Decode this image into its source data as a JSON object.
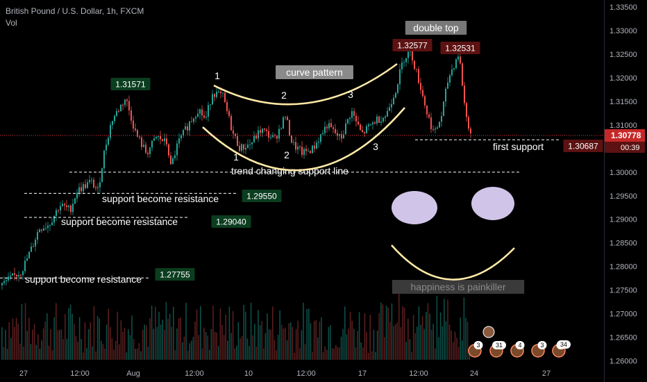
{
  "header": {
    "symbol_line": "British Pound / U.S. Dollar, 1h, FXCM",
    "volume_label": "Vol"
  },
  "colors": {
    "background": "#000000",
    "up": "#26a69a",
    "down": "#ef5350",
    "annotation_line": "#ffeaa7",
    "price_line": "#f23645",
    "smiley": "#d1c4e9"
  },
  "chart_data": {
    "type": "candlestick",
    "title": "British Pound / U.S. Dollar, 1h, FXCM",
    "ylim": [
      1.2555,
      1.3365
    ],
    "y_ticks": [
      "1.33500",
      "1.33000",
      "1.32500",
      "1.32000",
      "1.31500",
      "1.31000",
      "1.30500",
      "1.30000",
      "1.29500",
      "1.29000",
      "1.28500",
      "1.28000",
      "1.27500",
      "1.27000",
      "1.26500",
      "1.26000"
    ],
    "x_ticks": [
      "27",
      "12:00",
      "Aug",
      "12:00",
      "10",
      "12:00",
      "17",
      "12:00",
      "24",
      "27"
    ],
    "price_path": [
      [
        0,
        1.276
      ],
      [
        30,
        1.279
      ],
      [
        45,
        1.284
      ],
      [
        55,
        1.288
      ],
      [
        70,
        1.289
      ],
      [
        85,
        1.293
      ],
      [
        100,
        1.292
      ],
      [
        110,
        1.296
      ],
      [
        130,
        1.298
      ],
      [
        140,
        1.296
      ],
      [
        150,
        1.305
      ],
      [
        160,
        1.311
      ],
      [
        180,
        1.3157
      ],
      [
        195,
        1.308
      ],
      [
        210,
        1.304
      ],
      [
        225,
        1.3075
      ],
      [
        240,
        1.306
      ],
      [
        245,
        1.301
      ],
      [
        255,
        1.306
      ],
      [
        270,
        1.31
      ],
      [
        285,
        1.3135
      ],
      [
        295,
        1.311
      ],
      [
        305,
        1.317
      ],
      [
        320,
        1.316
      ],
      [
        335,
        1.308
      ],
      [
        345,
        1.305
      ],
      [
        360,
        1.306
      ],
      [
        375,
        1.309
      ],
      [
        395,
        1.307
      ],
      [
        410,
        1.312
      ],
      [
        420,
        1.306
      ],
      [
        435,
        1.304
      ],
      [
        450,
        1.305
      ],
      [
        470,
        1.31
      ],
      [
        490,
        1.307
      ],
      [
        505,
        1.313
      ],
      [
        520,
        1.308
      ],
      [
        540,
        1.311
      ],
      [
        555,
        1.312
      ],
      [
        570,
        1.318
      ],
      [
        580,
        1.324
      ],
      [
        590,
        1.3258
      ],
      [
        605,
        1.318
      ],
      [
        615,
        1.312
      ],
      [
        625,
        1.308
      ],
      [
        635,
        1.312
      ],
      [
        645,
        1.32
      ],
      [
        660,
        1.3253
      ],
      [
        670,
        1.312
      ],
      [
        678,
        1.3078
      ]
    ],
    "current_price": "1.30778",
    "countdown": "00:39",
    "support_price": "1.30687",
    "price_labels": [
      {
        "text": "1.31571",
        "price": 1.31571,
        "kind": "up"
      },
      {
        "text": "1.32577",
        "price": 1.32577,
        "kind": "down"
      },
      {
        "text": "1.32531",
        "price": 1.32531,
        "kind": "down"
      },
      {
        "text": "1.29550",
        "price": 1.2955,
        "kind": "up"
      },
      {
        "text": "1.29040",
        "price": 1.2904,
        "kind": "up"
      },
      {
        "text": "1.27755",
        "price": 1.27755,
        "kind": "up"
      }
    ],
    "support_lines": [
      {
        "price": 1.3,
        "label": "trend changing support line"
      },
      {
        "price": 1.2955,
        "label": "support become resistance"
      },
      {
        "price": 1.2904,
        "label": "support become resistance"
      },
      {
        "price": 1.27755,
        "label": "support become resistance"
      },
      {
        "price": 1.30687,
        "label": "first support"
      }
    ],
    "boxed_labels": [
      "double top",
      "curve pattern",
      "happiness is painkiller"
    ],
    "point_labels": [
      "1",
      "2",
      "3",
      "1",
      "2",
      "3"
    ],
    "event_badges": [
      "3",
      "31",
      "4",
      "3",
      "5",
      "34"
    ]
  }
}
